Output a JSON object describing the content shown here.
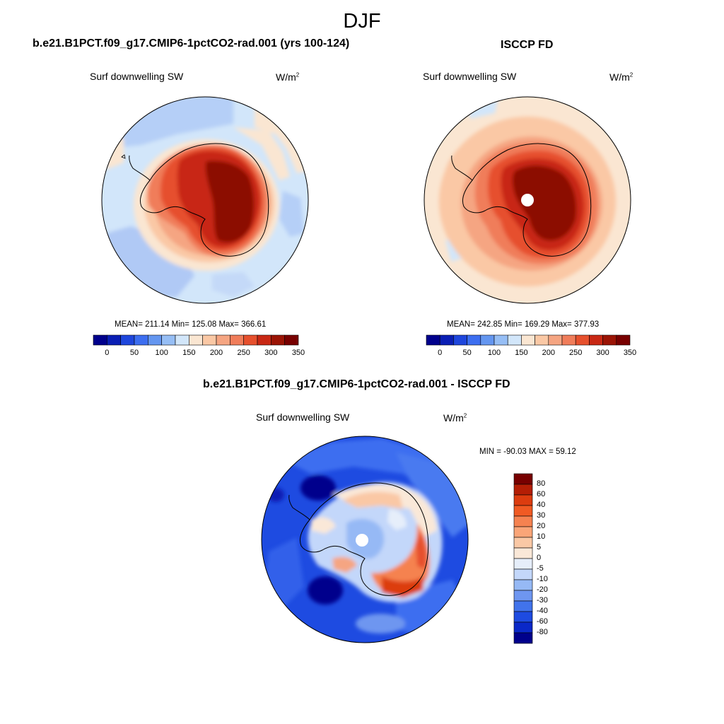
{
  "season": "DJF",
  "panels": {
    "model": {
      "title": "b.e21.B1PCT.f09_g17.CMIP6-1pctCO2-rad.001 (yrs 100-124)",
      "variable": "Surf downwelling SW",
      "units_base": "W/m",
      "units_exp": "2",
      "stats": "MEAN= 211.14  Min= 125.08  Max= 366.61"
    },
    "obs": {
      "title": "ISCCP FD",
      "variable": "Surf downwelling SW",
      "units_base": "W/m",
      "units_exp": "2",
      "stats": "MEAN= 242.85  Min= 169.29  Max= 377.93"
    },
    "diff": {
      "title": "b.e21.B1PCT.f09_g17.CMIP6-1pctCO2-rad.001 - ISCCP FD",
      "variable": "Surf downwelling SW",
      "units_base": "W/m",
      "units_exp": "2",
      "stats": "MIN = -90.03 MAX =  59.12"
    }
  },
  "colorbars": {
    "abs_ticks": [
      "0",
      "50",
      "100",
      "150",
      "200",
      "250",
      "300",
      "350"
    ],
    "abs_colors": [
      "#00008c",
      "#0a1eb4",
      "#1e46dc",
      "#3c6ef0",
      "#6496f0",
      "#96bef5",
      "#d2e6fa",
      "#fae6d2",
      "#fac8a5",
      "#f5a582",
      "#f07d5a",
      "#e6502d",
      "#c82814",
      "#9b1405",
      "#780000"
    ],
    "diff_ticks": [
      "80",
      "60",
      "40",
      "30",
      "20",
      "10",
      "5",
      "0",
      "-5",
      "-10",
      "-20",
      "-30",
      "-40",
      "-60",
      "-80"
    ],
    "diff_colors": [
      "#780000",
      "#b41e05",
      "#dc3c0f",
      "#f05a23",
      "#f58250",
      "#faa578",
      "#fac8a5",
      "#fae8d8",
      "#e6eefa",
      "#c3d7fa",
      "#96b9f5",
      "#6e96f0",
      "#4173eb",
      "#1e4be1",
      "#0a28c8",
      "#00008c"
    ]
  }
}
